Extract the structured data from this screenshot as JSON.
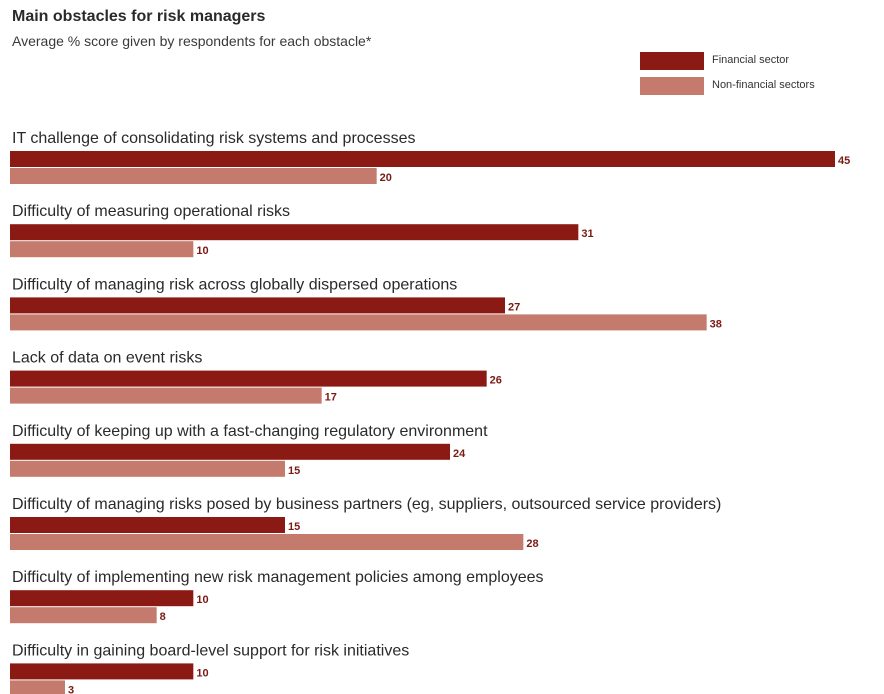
{
  "chart_data": {
    "type": "bar",
    "orientation": "horizontal",
    "title": "Main obstacles for risk managers",
    "subtitle": "Average % score given by respondents for each obstacle*",
    "categories": [
      "IT challenge of consolidating risk systems and processes",
      "Difficulty of measuring operational risks",
      "Difficulty of managing risk across globally dispersed operations",
      "Lack of data on event risks",
      "Difficulty of keeping up with a fast-changing regulatory environment",
      "Difficulty of managing risks posed by business partners (eg, suppliers, outsourced service providers)",
      "Difficulty of implementing new risk management policies among employees",
      "Difficulty in gaining board-level support for risk initiatives"
    ],
    "series": [
      {
        "name": "Financial sector",
        "color": "#8b1a15",
        "values": [
          45,
          31,
          27,
          26,
          24,
          15,
          10,
          10
        ]
      },
      {
        "name": "Non-financial sectors",
        "color": "#c47a6c",
        "values": [
          20,
          10,
          38,
          17,
          15,
          28,
          8,
          3
        ]
      }
    ],
    "xlim": [
      0,
      45
    ],
    "grid": false,
    "legend_position": "top-right"
  }
}
